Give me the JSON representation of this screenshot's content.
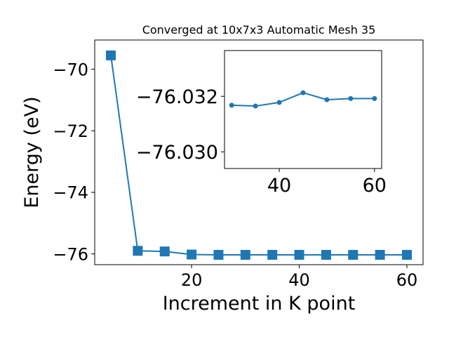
{
  "chart_data": [
    {
      "type": "line",
      "title": "Converged at 10x7x3 Automatic Mesh 35",
      "xlabel": "Increment in K point",
      "ylabel": "Energy (eV)",
      "xlim": [
        2,
        63
      ],
      "ylim": [
        -76.35,
        -69.05
      ],
      "xticks": [
        20,
        40,
        60
      ],
      "xtick_labels": [
        "20",
        "40",
        "60"
      ],
      "yticks": [
        -70,
        -72,
        -74,
        -76
      ],
      "ytick_labels": [
        "−70",
        "−72",
        "−74",
        "−76"
      ],
      "grid": false,
      "marker": "square",
      "color": "#1f77b4",
      "series": [
        {
          "x": [
            5,
            10,
            15,
            20,
            25,
            30,
            35,
            40,
            45,
            50,
            55,
            60
          ],
          "y": [
            -69.55,
            -75.9,
            -75.92,
            -76.02,
            -76.03,
            -76.03,
            -76.03,
            -76.03,
            -76.03,
            -76.03,
            -76.03,
            -76.03
          ]
        }
      ]
    },
    {
      "type": "line",
      "role": "inset",
      "xlim": [
        28.5,
        61.5
      ],
      "ylim": [
        -76.0294,
        -76.03365
      ],
      "xticks": [
        40,
        60
      ],
      "xtick_labels": [
        "40",
        "60"
      ],
      "yticks": [
        -76.032,
        -76.03
      ],
      "ytick_labels": [
        "−76.032",
        "−76.030"
      ],
      "grid": false,
      "marker": "circle",
      "color": "#1f77b4",
      "series": [
        {
          "x": [
            30,
            35,
            40,
            45,
            50,
            55,
            60
          ],
          "y": [
            -76.03168,
            -76.03165,
            -76.03178,
            -76.03213,
            -76.03188,
            -76.03192,
            -76.03192
          ]
        }
      ]
    }
  ]
}
